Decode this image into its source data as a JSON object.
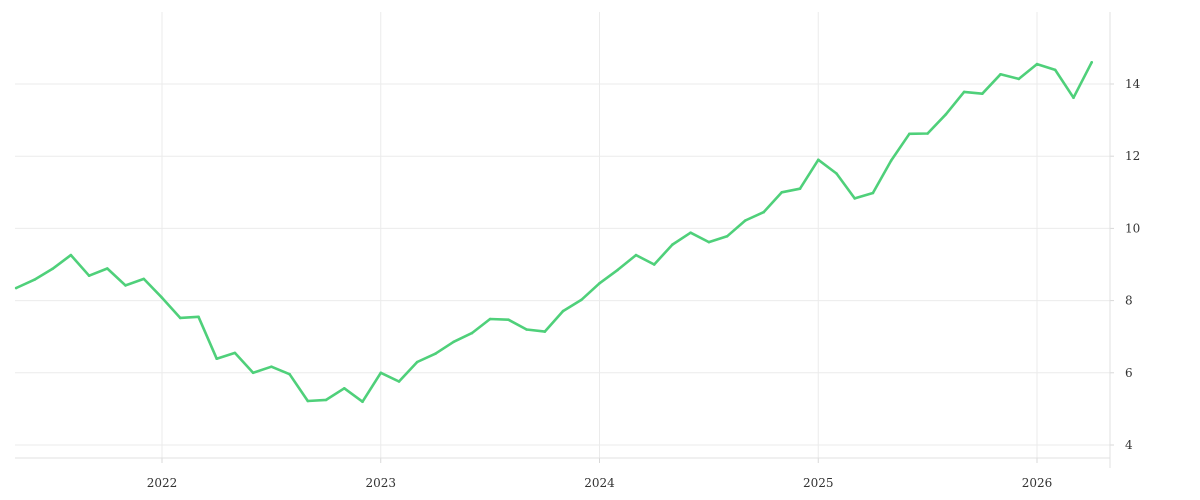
{
  "chart_data": {
    "type": "line",
    "title": "",
    "xlabel": "",
    "ylabel": "",
    "x_tick_labels": [
      "2022",
      "2023",
      "2024",
      "2025",
      "2026"
    ],
    "y_tick_labels": [
      "4",
      "6",
      "8",
      "10",
      "12",
      "14"
    ],
    "y_ticks": [
      4,
      6,
      8,
      10,
      12,
      14
    ],
    "xlim": [
      "2021-05",
      "2026-06"
    ],
    "ylim": [
      3.6,
      15.9
    ],
    "grid": true,
    "y_axis_position": "right",
    "legend": "none",
    "series": [
      {
        "color": "#4fd07a",
        "x": [
          "2021-05",
          "2021-06",
          "2021-07",
          "2021-08",
          "2021-09",
          "2021-10",
          "2021-11",
          "2021-12",
          "2022-01",
          "2022-02",
          "2022-03",
          "2022-04",
          "2022-05",
          "2022-06",
          "2022-07",
          "2022-08",
          "2022-09",
          "2022-10",
          "2022-11",
          "2022-12",
          "2023-01",
          "2023-02",
          "2023-03",
          "2023-04",
          "2023-05",
          "2023-06",
          "2023-07",
          "2023-08",
          "2023-09",
          "2023-10",
          "2023-11",
          "2023-12",
          "2024-01",
          "2024-02",
          "2024-03",
          "2024-04",
          "2024-05",
          "2024-06",
          "2024-07",
          "2024-08",
          "2024-09",
          "2024-10",
          "2024-11",
          "2024-12",
          "2025-01",
          "2025-02",
          "2025-03",
          "2025-04",
          "2025-05",
          "2025-06",
          "2025-07",
          "2025-08",
          "2025-09",
          "2025-10",
          "2025-11",
          "2025-12",
          "2026-01",
          "2026-02",
          "2026-03",
          "2026-04"
        ],
        "values": [
          8.35,
          8.58,
          8.88,
          9.26,
          8.69,
          8.89,
          8.42,
          8.6,
          8.08,
          7.52,
          7.55,
          6.39,
          6.55,
          6.0,
          6.17,
          5.96,
          5.22,
          5.25,
          5.57,
          5.2,
          6.0,
          5.76,
          6.3,
          6.53,
          6.86,
          7.1,
          7.49,
          7.47,
          7.2,
          7.14,
          7.71,
          8.02,
          8.48,
          8.85,
          9.26,
          9.0,
          9.55,
          9.88,
          9.62,
          9.78,
          10.22,
          10.45,
          11.0,
          11.1,
          11.9,
          11.52,
          10.83,
          10.98,
          11.88,
          12.62,
          12.63,
          13.16,
          13.78,
          13.73,
          14.27,
          14.14,
          14.55,
          14.39,
          13.62,
          14.6
        ]
      }
    ]
  }
}
